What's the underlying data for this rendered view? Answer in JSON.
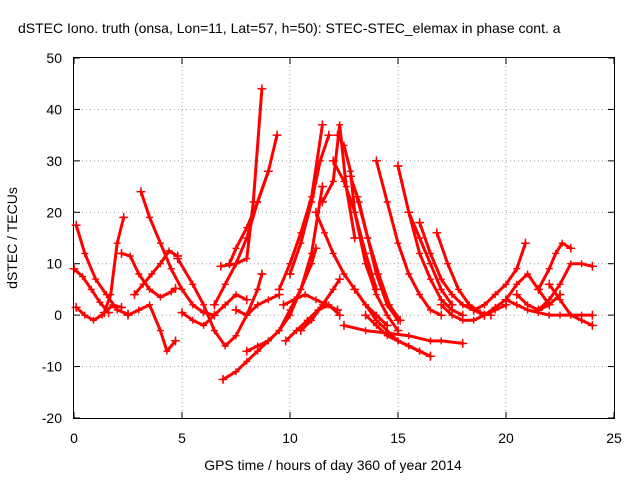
{
  "chart_data": {
    "type": "scatter",
    "title": "dSTEC Iono. truth (onsa, Lon=11, Lat=57, h=50): STEC-STEC_elemax in phase cont. a",
    "xlabel": "GPS time / hours of day 360 of year 2014",
    "ylabel": "dSTEC  / TECUs",
    "xlim": [
      0,
      25
    ],
    "ylim": [
      -20,
      50
    ],
    "xticks": [
      "0",
      "5",
      "10",
      "15",
      "20",
      "25"
    ],
    "yticks": [
      "-20",
      "-10",
      "0",
      "10",
      "20",
      "30",
      "40",
      "50"
    ],
    "grid": true,
    "marker": "+",
    "color": "#ff0000",
    "series": [
      {
        "x": [
          0.1,
          0.5,
          1.0,
          1.5,
          2.0,
          2.5
        ],
        "y": [
          17.5,
          12,
          7,
          4,
          1,
          0.2
        ]
      },
      {
        "x": [
          0.0,
          0.4,
          0.8,
          1.2,
          1.6
        ],
        "y": [
          9,
          7.5,
          5,
          2.5,
          0.5
        ]
      },
      {
        "x": [
          0.1,
          0.5,
          0.9,
          1.3,
          1.8,
          2.2
        ],
        "y": [
          1.5,
          0,
          -1,
          0,
          2,
          1.5
        ]
      },
      {
        "x": [
          1.4,
          1.7,
          2.0,
          2.3
        ],
        "y": [
          0.5,
          4,
          14,
          19
        ]
      },
      {
        "x": [
          2.2,
          2.6,
          3.0,
          3.5,
          4.0,
          4.5,
          4.7
        ],
        "y": [
          12,
          11.5,
          8,
          5,
          3.5,
          4.5,
          5.2
        ]
      },
      {
        "x": [
          3.1,
          3.5,
          4.0,
          4.5,
          5.0,
          5.5,
          6.0,
          6.5
        ],
        "y": [
          24,
          19,
          14,
          9,
          5,
          2,
          0.5,
          0
        ]
      },
      {
        "x": [
          2.5,
          3.0,
          3.5,
          4.0,
          4.3,
          4.7
        ],
        "y": [
          0,
          1,
          2,
          -3,
          -7,
          -5
        ]
      },
      {
        "x": [
          2.8,
          3.2,
          3.6,
          4.0,
          4.4,
          4.8
        ],
        "y": [
          4,
          6,
          8,
          10,
          12.5,
          11.5
        ]
      },
      {
        "x": [
          4.8,
          5.5,
          6.0,
          6.5,
          7.0,
          7.5,
          8.0,
          8.5,
          8.7
        ],
        "y": [
          11,
          6,
          2,
          -3,
          -6,
          -4,
          0,
          5,
          8
        ]
      },
      {
        "x": [
          5.0,
          5.5,
          6.0,
          6.5,
          7.0,
          7.5,
          8.0
        ],
        "y": [
          0.5,
          -1,
          -2,
          0,
          2,
          4,
          3
        ]
      },
      {
        "x": [
          6.8,
          7.5,
          8.0,
          8.3,
          8.7
        ],
        "y": [
          9.5,
          10,
          11,
          22,
          44
        ]
      },
      {
        "x": [
          6.5,
          7.0,
          7.5,
          8.0,
          8.5,
          9.0
        ],
        "y": [
          2,
          6,
          10,
          15,
          22,
          28
        ]
      },
      {
        "x": [
          7.2,
          7.5,
          8.0,
          8.5,
          9.0,
          9.4
        ],
        "y": [
          10,
          13,
          17,
          22,
          28,
          35
        ]
      },
      {
        "x": [
          7.5,
          8.0,
          8.5,
          9.0,
          9.5
        ],
        "y": [
          1,
          0,
          2,
          3,
          4
        ]
      },
      {
        "x": [
          6.9,
          7.5,
          8.0,
          8.5,
          9.0,
          9.5,
          10.0,
          10.5,
          11.0,
          11.2
        ],
        "y": [
          -12.5,
          -11,
          -9,
          -7,
          -5,
          -3,
          1,
          5,
          10,
          13
        ]
      },
      {
        "x": [
          8.0,
          8.5,
          9.0,
          9.5,
          10.0,
          10.5,
          11.0,
          11.5
        ],
        "y": [
          -7,
          -6,
          -5,
          -3,
          0,
          5,
          12,
          25
        ]
      },
      {
        "x": [
          9.5,
          10.0,
          10.5,
          11.0,
          11.5
        ],
        "y": [
          5,
          10,
          16,
          23,
          37
        ]
      },
      {
        "x": [
          10.0,
          10.5,
          11.0,
          11.4,
          11.8
        ],
        "y": [
          8,
          14,
          22,
          30,
          35
        ]
      },
      {
        "x": [
          9.8,
          10.3,
          10.8,
          11.3,
          11.8,
          12.3
        ],
        "y": [
          -5,
          -3,
          -1,
          1,
          2,
          0
        ]
      },
      {
        "x": [
          10.5,
          11.0,
          11.5,
          12.0,
          12.3
        ],
        "y": [
          -3,
          -1,
          2,
          5,
          7
        ]
      },
      {
        "x": [
          9.7,
          10.2,
          10.7,
          11.2,
          11.7,
          12.2
        ],
        "y": [
          2,
          3,
          4,
          3,
          2,
          1
        ]
      },
      {
        "x": [
          11.2,
          11.6,
          12.0,
          12.5,
          13.0,
          13.5,
          14.0,
          14.5
        ],
        "y": [
          20,
          16,
          12,
          8,
          5,
          2,
          0,
          -2
        ]
      },
      {
        "x": [
          11.5,
          12.0,
          12.3,
          12.6,
          13.0
        ],
        "y": [
          22,
          26,
          37,
          25,
          15
        ]
      },
      {
        "x": [
          12.2,
          12.5,
          12.8,
          13.0,
          13.5,
          14.0,
          14.5,
          15.0
        ],
        "y": [
          35,
          33,
          28,
          20,
          10,
          4,
          0,
          -3
        ]
      },
      {
        "x": [
          12.0,
          12.5,
          13.0,
          13.5,
          14.0
        ],
        "y": [
          30,
          26,
          20,
          12,
          5
        ]
      },
      {
        "x": [
          12.8,
          13.2,
          13.6,
          14.0,
          14.5,
          15.0
        ],
        "y": [
          27,
          22,
          15,
          8,
          2,
          -1
        ]
      },
      {
        "x": [
          13.1,
          13.6,
          14.1,
          14.6,
          15.1
        ],
        "y": [
          23,
          15,
          8,
          2,
          -1
        ]
      },
      {
        "x": [
          13.5,
          14.0,
          14.5,
          15.0,
          15.5,
          16.0,
          16.5
        ],
        "y": [
          0,
          -2,
          -4,
          -5,
          -6,
          -7,
          -8
        ]
      },
      {
        "x": [
          14.0,
          14.5,
          15.0,
          15.5,
          16.0,
          16.5,
          17.0
        ],
        "y": [
          30,
          22,
          14,
          8,
          4,
          1,
          0
        ]
      },
      {
        "x": [
          15.0,
          15.5,
          16.0,
          16.5,
          17.0,
          17.5,
          18.0
        ],
        "y": [
          29,
          20,
          12,
          7,
          3,
          1,
          0
        ]
      },
      {
        "x": [
          15.5,
          16.0,
          16.5,
          17.0,
          17.5
        ],
        "y": [
          20,
          15,
          10,
          5,
          2
        ]
      },
      {
        "x": [
          16.0,
          16.5,
          17.0,
          17.5,
          18.0,
          18.5,
          19.0
        ],
        "y": [
          18,
          12,
          7,
          4,
          2,
          1,
          0
        ]
      },
      {
        "x": [
          16.8,
          17.3,
          17.8,
          18.3,
          18.8,
          19.3
        ],
        "y": [
          16,
          10,
          5,
          2,
          0.5,
          0
        ]
      },
      {
        "x": [
          13.0,
          14.0,
          15.0,
          15.5,
          16.0,
          16.5
        ],
        "y": [
          5,
          -1,
          -5,
          -6,
          -7,
          -8
        ]
      },
      {
        "x": [
          12.5,
          13.5,
          14.5,
          15.5,
          16.5,
          17.0,
          18.0
        ],
        "y": [
          -2,
          -3,
          -3.5,
          -4,
          -5,
          -5,
          -5.5
        ]
      },
      {
        "x": [
          17.0,
          17.5,
          18.0,
          18.5,
          19.0,
          19.5,
          20.0
        ],
        "y": [
          2,
          0,
          -1,
          -1,
          0,
          1,
          2
        ]
      },
      {
        "x": [
          18.5,
          19.0,
          19.5,
          20.0,
          20.5,
          20.9
        ],
        "y": [
          1,
          2,
          4,
          6,
          9,
          14
        ]
      },
      {
        "x": [
          19.0,
          19.5,
          20.0,
          20.5,
          21.0,
          21.5,
          22.0
        ],
        "y": [
          0,
          1.5,
          3,
          6,
          8,
          5,
          2
        ]
      },
      {
        "x": [
          20.0,
          20.5,
          21.0,
          21.5,
          22.0,
          22.5,
          23.0,
          23.5,
          24.0
        ],
        "y": [
          3,
          2,
          1,
          0.5,
          0,
          0,
          0,
          0,
          0
        ]
      },
      {
        "x": [
          21.5,
          22.0,
          22.3,
          22.6,
          23.0
        ],
        "y": [
          5,
          9,
          12,
          14,
          13
        ]
      },
      {
        "x": [
          21.5,
          22.0,
          22.5,
          23.0,
          23.5,
          24.0
        ],
        "y": [
          1,
          3,
          6,
          10,
          10,
          9.5
        ]
      },
      {
        "x": [
          22.0,
          22.5,
          23.0,
          23.5,
          24.0
        ],
        "y": [
          6,
          3,
          0,
          -1,
          -2
        ]
      },
      {
        "x": [
          20.5,
          21.0,
          21.5,
          22.0,
          22.5
        ],
        "y": [
          4,
          2,
          1,
          2,
          4
        ]
      }
    ]
  }
}
